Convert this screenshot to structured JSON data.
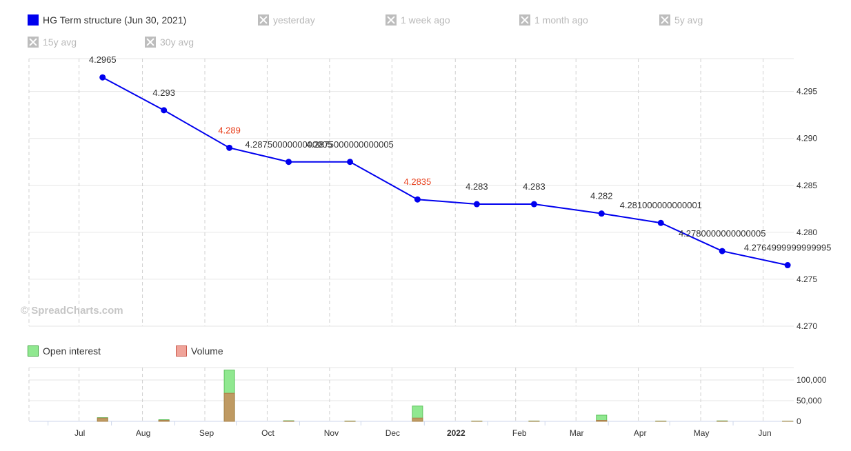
{
  "legend": {
    "main": {
      "label": "HG Term structure (Jun 30, 2021)",
      "color": "#0000ee"
    },
    "disabled": [
      "yesterday",
      "1 week ago",
      "1 month ago",
      "5y avg",
      "15y avg",
      "30y avg"
    ]
  },
  "volume_legend": {
    "open_interest": {
      "label": "Open interest",
      "color": "#90e890"
    },
    "volume": {
      "label": "Volume",
      "color": "#f0a49a"
    }
  },
  "watermark": "© SpreadCharts.com",
  "chart_data": [
    {
      "type": "line",
      "series": [
        {
          "name": "HG Term structure (Jun 30, 2021)",
          "color": "#0000ee"
        }
      ],
      "x": [
        "2021-07-28",
        "2021-08-27",
        "2021-09-28",
        "2021-10-27",
        "2021-11-26",
        "2021-12-29",
        "2022-01-27",
        "2022-02-24",
        "2022-03-29",
        "2022-04-27",
        "2022-05-27",
        "2022-06-28"
      ],
      "y": [
        4.2965,
        4.293,
        4.289,
        4.2875000000000005,
        4.2875000000000005,
        4.2835,
        4.283,
        4.283,
        4.282,
        4.281000000000001,
        4.2780000000000005,
        4.2764999999999995
      ],
      "data_labels": [
        "4.2965",
        "4.293",
        "4.289",
        "4.2875000000000005",
        "4.2875000000000005",
        "4.2835",
        "4.283",
        "4.283",
        "4.282",
        "4.281000000000001",
        "4.2780000000000005",
        "4.2764999999999995"
      ],
      "highlight_label_indices": [
        2,
        5
      ],
      "highlight_color": "#e8411e",
      "y_ticks": [
        "4.270",
        "4.275",
        "4.280",
        "4.285",
        "4.290",
        "4.295"
      ],
      "ylim": [
        4.27,
        4.2985
      ],
      "x_ticks": [
        {
          "label": "Jul",
          "date": "2021-07-01",
          "bold": false
        },
        {
          "label": "Aug",
          "date": "2021-08-01",
          "bold": false
        },
        {
          "label": "Sep",
          "date": "2021-09-01",
          "bold": false
        },
        {
          "label": "Oct",
          "date": "2021-10-01",
          "bold": false
        },
        {
          "label": "Nov",
          "date": "2021-11-01",
          "bold": false
        },
        {
          "label": "Dec",
          "date": "2021-12-01",
          "bold": false
        },
        {
          "label": "2022",
          "date": "2022-01-01",
          "bold": true
        },
        {
          "label": "Feb",
          "date": "2022-02-01",
          "bold": false
        },
        {
          "label": "Mar",
          "date": "2022-03-01",
          "bold": false
        },
        {
          "label": "Apr",
          "date": "2022-04-01",
          "bold": false
        },
        {
          "label": "May",
          "date": "2022-05-01",
          "bold": false
        },
        {
          "label": "Jun",
          "date": "2022-06-01",
          "bold": false
        }
      ],
      "grid": true
    },
    {
      "type": "bar",
      "stacked": "overlay",
      "x": [
        "2021-07-28",
        "2021-08-27",
        "2021-09-28",
        "2021-10-27",
        "2021-11-26",
        "2021-12-29",
        "2022-01-27",
        "2022-02-24",
        "2022-03-29",
        "2022-04-27",
        "2022-05-27",
        "2022-06-28"
      ],
      "series": [
        {
          "name": "Open interest",
          "color": "#90e890",
          "values": [
            9000,
            4000,
            124000,
            1500,
            800,
            37000,
            600,
            900,
            15000,
            700,
            1200,
            400
          ]
        },
        {
          "name": "Volume",
          "color": "#f0a49a",
          "values": [
            8000,
            2500,
            68000,
            600,
            300,
            8000,
            200,
            300,
            2500,
            150,
            300,
            100
          ]
        }
      ],
      "overlap_color": "#bf9a62",
      "y_ticks": [
        "0",
        "50,000",
        "100,000"
      ],
      "ylim": [
        0,
        130000
      ]
    }
  ]
}
